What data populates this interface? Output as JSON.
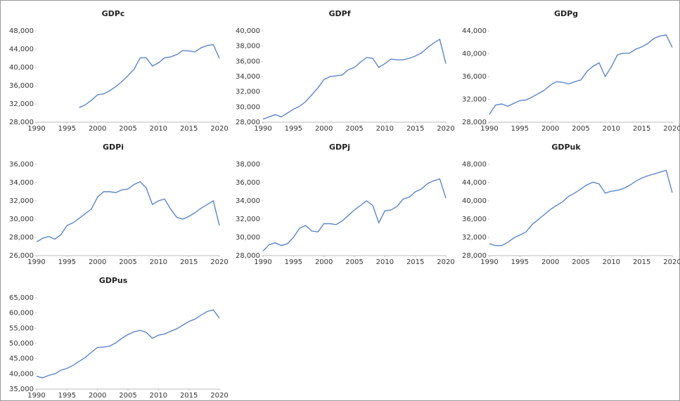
{
  "chart_data": [
    {
      "type": "line",
      "title": "GDPc",
      "color": "#5b86c9",
      "x": [
        1990,
        1991,
        1992,
        1993,
        1994,
        1995,
        1996,
        1997,
        1998,
        1999,
        2000,
        2001,
        2002,
        2003,
        2004,
        2005,
        2006,
        2007,
        2008,
        2009,
        2010,
        2011,
        2012,
        2013,
        2014,
        2015,
        2016,
        2017,
        2018,
        2019,
        2020
      ],
      "values": [
        null,
        null,
        null,
        null,
        null,
        null,
        null,
        31200,
        31800,
        32800,
        34000,
        34200,
        34900,
        35800,
        36900,
        38200,
        39600,
        42100,
        42100,
        40300,
        41000,
        42100,
        42300,
        42800,
        43700,
        43600,
        43400,
        44300,
        44800,
        45000,
        42000
      ],
      "xlim": [
        1990,
        2020
      ],
      "xticks": [
        1990,
        1995,
        2000,
        2005,
        2010,
        2015,
        2020
      ],
      "ylim": [
        28000,
        48000
      ],
      "yticks": [
        {
          "value": 28000,
          "label": "28,000"
        },
        {
          "value": 32000,
          "label": "32,000"
        },
        {
          "value": 36000,
          "label": "36,000"
        },
        {
          "value": 40000,
          "label": "40,000"
        },
        {
          "value": 44000,
          "label": "44,000"
        },
        {
          "value": 48000,
          "label": "48,000"
        }
      ]
    },
    {
      "type": "line",
      "title": "GDPf",
      "color": "#5b86c9",
      "x": [
        1990,
        1991,
        1992,
        1993,
        1994,
        1995,
        1996,
        1997,
        1998,
        1999,
        2000,
        2001,
        2002,
        2003,
        2004,
        2005,
        2006,
        2007,
        2008,
        2009,
        2010,
        2011,
        2012,
        2013,
        2014,
        2015,
        2016,
        2017,
        2018,
        2019,
        2020
      ],
      "values": [
        28400,
        28700,
        29000,
        28700,
        29200,
        29700,
        30100,
        30700,
        31600,
        32500,
        33600,
        34000,
        34100,
        34200,
        34900,
        35200,
        35900,
        36500,
        36400,
        35200,
        35700,
        36300,
        36200,
        36200,
        36400,
        36700,
        37100,
        37800,
        38400,
        38900,
        35700
      ],
      "xlim": [
        1990,
        2020
      ],
      "xticks": [
        1990,
        1995,
        2000,
        2005,
        2010,
        2015,
        2020
      ],
      "ylim": [
        28000,
        40000
      ],
      "yticks": [
        {
          "value": 28000,
          "label": "28,000"
        },
        {
          "value": 30000,
          "label": "30,000"
        },
        {
          "value": 32000,
          "label": "32,000"
        },
        {
          "value": 34000,
          "label": "34,000"
        },
        {
          "value": 36000,
          "label": "36,000"
        },
        {
          "value": 38000,
          "label": "38,000"
        },
        {
          "value": 40000,
          "label": "40,000"
        }
      ]
    },
    {
      "type": "line",
      "title": "GDPg",
      "color": "#5b86c9",
      "x": [
        1990,
        1991,
        1992,
        1993,
        1994,
        1995,
        1996,
        1997,
        1998,
        1999,
        2000,
        2001,
        2002,
        2003,
        2004,
        2005,
        2006,
        2007,
        2008,
        2009,
        2010,
        2011,
        2012,
        2013,
        2014,
        2015,
        2016,
        2017,
        2018,
        2019,
        2020
      ],
      "values": [
        29400,
        31000,
        31200,
        30800,
        31300,
        31800,
        31900,
        32400,
        33000,
        33600,
        34500,
        35100,
        35000,
        34700,
        35100,
        35400,
        36900,
        37800,
        38400,
        36000,
        37700,
        39800,
        40100,
        40100,
        40800,
        41200,
        41800,
        42700,
        43100,
        43300,
        41100
      ],
      "xlim": [
        1990,
        2020
      ],
      "xticks": [
        1990,
        1995,
        2000,
        2005,
        2010,
        2015,
        2020
      ],
      "ylim": [
        28000,
        44000
      ],
      "yticks": [
        {
          "value": 28000,
          "label": "28,000"
        },
        {
          "value": 32000,
          "label": "32,000"
        },
        {
          "value": 36000,
          "label": "36,000"
        },
        {
          "value": 40000,
          "label": "40,000"
        },
        {
          "value": 44000,
          "label": "44,000"
        }
      ]
    },
    {
      "type": "line",
      "title": "GDPi",
      "color": "#5b86c9",
      "x": [
        1990,
        1991,
        1992,
        1993,
        1994,
        1995,
        1996,
        1997,
        1998,
        1999,
        2000,
        2001,
        2002,
        2003,
        2004,
        2005,
        2006,
        2007,
        2008,
        2009,
        2010,
        2011,
        2012,
        2013,
        2014,
        2015,
        2016,
        2017,
        2018,
        2019,
        2020
      ],
      "values": [
        27500,
        27900,
        28100,
        27800,
        28300,
        29300,
        29600,
        30100,
        30600,
        31100,
        32400,
        33000,
        33000,
        32900,
        33200,
        33300,
        33800,
        34100,
        33400,
        31600,
        32000,
        32200,
        31100,
        30200,
        30000,
        30300,
        30700,
        31200,
        31600,
        32000,
        29300
      ],
      "xlim": [
        1990,
        2020
      ],
      "xticks": [
        1990,
        1995,
        2000,
        2005,
        2010,
        2015,
        2020
      ],
      "ylim": [
        26000,
        36000
      ],
      "yticks": [
        {
          "value": 26000,
          "label": "26,000"
        },
        {
          "value": 28000,
          "label": "28,000"
        },
        {
          "value": 30000,
          "label": "30,000"
        },
        {
          "value": 32000,
          "label": "32,000"
        },
        {
          "value": 34000,
          "label": "34,000"
        },
        {
          "value": 36000,
          "label": "36,000"
        }
      ]
    },
    {
      "type": "line",
      "title": "GDPj",
      "color": "#5b86c9",
      "x": [
        1990,
        1991,
        1992,
        1993,
        1994,
        1995,
        1996,
        1997,
        1998,
        1999,
        2000,
        2001,
        2002,
        2003,
        2004,
        2005,
        2006,
        2007,
        2008,
        2009,
        2010,
        2011,
        2012,
        2013,
        2014,
        2015,
        2016,
        2017,
        2018,
        2019,
        2020
      ],
      "values": [
        28500,
        29200,
        29400,
        29100,
        29300,
        30000,
        31000,
        31300,
        30700,
        30600,
        31500,
        31500,
        31400,
        31800,
        32400,
        33000,
        33500,
        34000,
        33500,
        31600,
        32900,
        33000,
        33400,
        34200,
        34400,
        35000,
        35300,
        35900,
        36200,
        36400,
        34300
      ],
      "xlim": [
        1990,
        2020
      ],
      "xticks": [
        1990,
        1995,
        2000,
        2005,
        2010,
        2015,
        2020
      ],
      "ylim": [
        28000,
        38000
      ],
      "yticks": [
        {
          "value": 28000,
          "label": "28,000"
        },
        {
          "value": 30000,
          "label": "30,000"
        },
        {
          "value": 32000,
          "label": "32,000"
        },
        {
          "value": 34000,
          "label": "34,000"
        },
        {
          "value": 36000,
          "label": "36,000"
        },
        {
          "value": 38000,
          "label": "38,000"
        }
      ]
    },
    {
      "type": "line",
      "title": "GDPuk",
      "color": "#5b86c9",
      "x": [
        1990,
        1991,
        1992,
        1993,
        1994,
        1995,
        1996,
        1997,
        1998,
        1999,
        2000,
        2001,
        2002,
        2003,
        2004,
        2005,
        2006,
        2007,
        2008,
        2009,
        2010,
        2011,
        2012,
        2013,
        2014,
        2015,
        2016,
        2017,
        2018,
        2019,
        2020
      ],
      "values": [
        30600,
        30200,
        30200,
        30900,
        31900,
        32500,
        33200,
        34800,
        35900,
        37000,
        38100,
        39000,
        39800,
        41000,
        41700,
        42600,
        43500,
        44100,
        43700,
        41700,
        42100,
        42300,
        42700,
        43400,
        44300,
        45000,
        45500,
        45900,
        46300,
        46700,
        41800
      ],
      "xlim": [
        1990,
        2020
      ],
      "xticks": [
        1990,
        1995,
        2000,
        2005,
        2010,
        2015,
        2020
      ],
      "ylim": [
        28000,
        48000
      ],
      "yticks": [
        {
          "value": 28000,
          "label": "28,000"
        },
        {
          "value": 32000,
          "label": "32,000"
        },
        {
          "value": 36000,
          "label": "36,000"
        },
        {
          "value": 40000,
          "label": "40,000"
        },
        {
          "value": 44000,
          "label": "44,000"
        },
        {
          "value": 48000,
          "label": "48,000"
        }
      ]
    },
    {
      "type": "line",
      "title": "GDPus",
      "color": "#5b86c9",
      "x": [
        1990,
        1991,
        1992,
        1993,
        1994,
        1995,
        1996,
        1997,
        1998,
        1999,
        2000,
        2001,
        2002,
        2003,
        2004,
        2005,
        2006,
        2007,
        2008,
        2009,
        2010,
        2011,
        2012,
        2013,
        2014,
        2015,
        2016,
        2017,
        2018,
        2019,
        2020
      ],
      "values": [
        39200,
        38700,
        39500,
        40000,
        41200,
        41800,
        42800,
        44100,
        45400,
        47100,
        48700,
        48800,
        49100,
        50200,
        51700,
        52900,
        53800,
        54300,
        53600,
        51700,
        52700,
        53100,
        54000,
        54800,
        56000,
        57200,
        58000,
        59300,
        60500,
        61000,
        58300
      ],
      "xlim": [
        1990,
        2020
      ],
      "xticks": [
        1990,
        1995,
        2000,
        2005,
        2010,
        2015,
        2020
      ],
      "ylim": [
        35000,
        65000
      ],
      "yticks": [
        {
          "value": 35000,
          "label": "35,000"
        },
        {
          "value": 40000,
          "label": "40,000"
        },
        {
          "value": 45000,
          "label": "45,000"
        },
        {
          "value": 50000,
          "label": "50,000"
        },
        {
          "value": 55000,
          "label": "55,000"
        },
        {
          "value": 60000,
          "label": "60,000"
        },
        {
          "value": 65000,
          "label": "65,000"
        }
      ]
    }
  ]
}
